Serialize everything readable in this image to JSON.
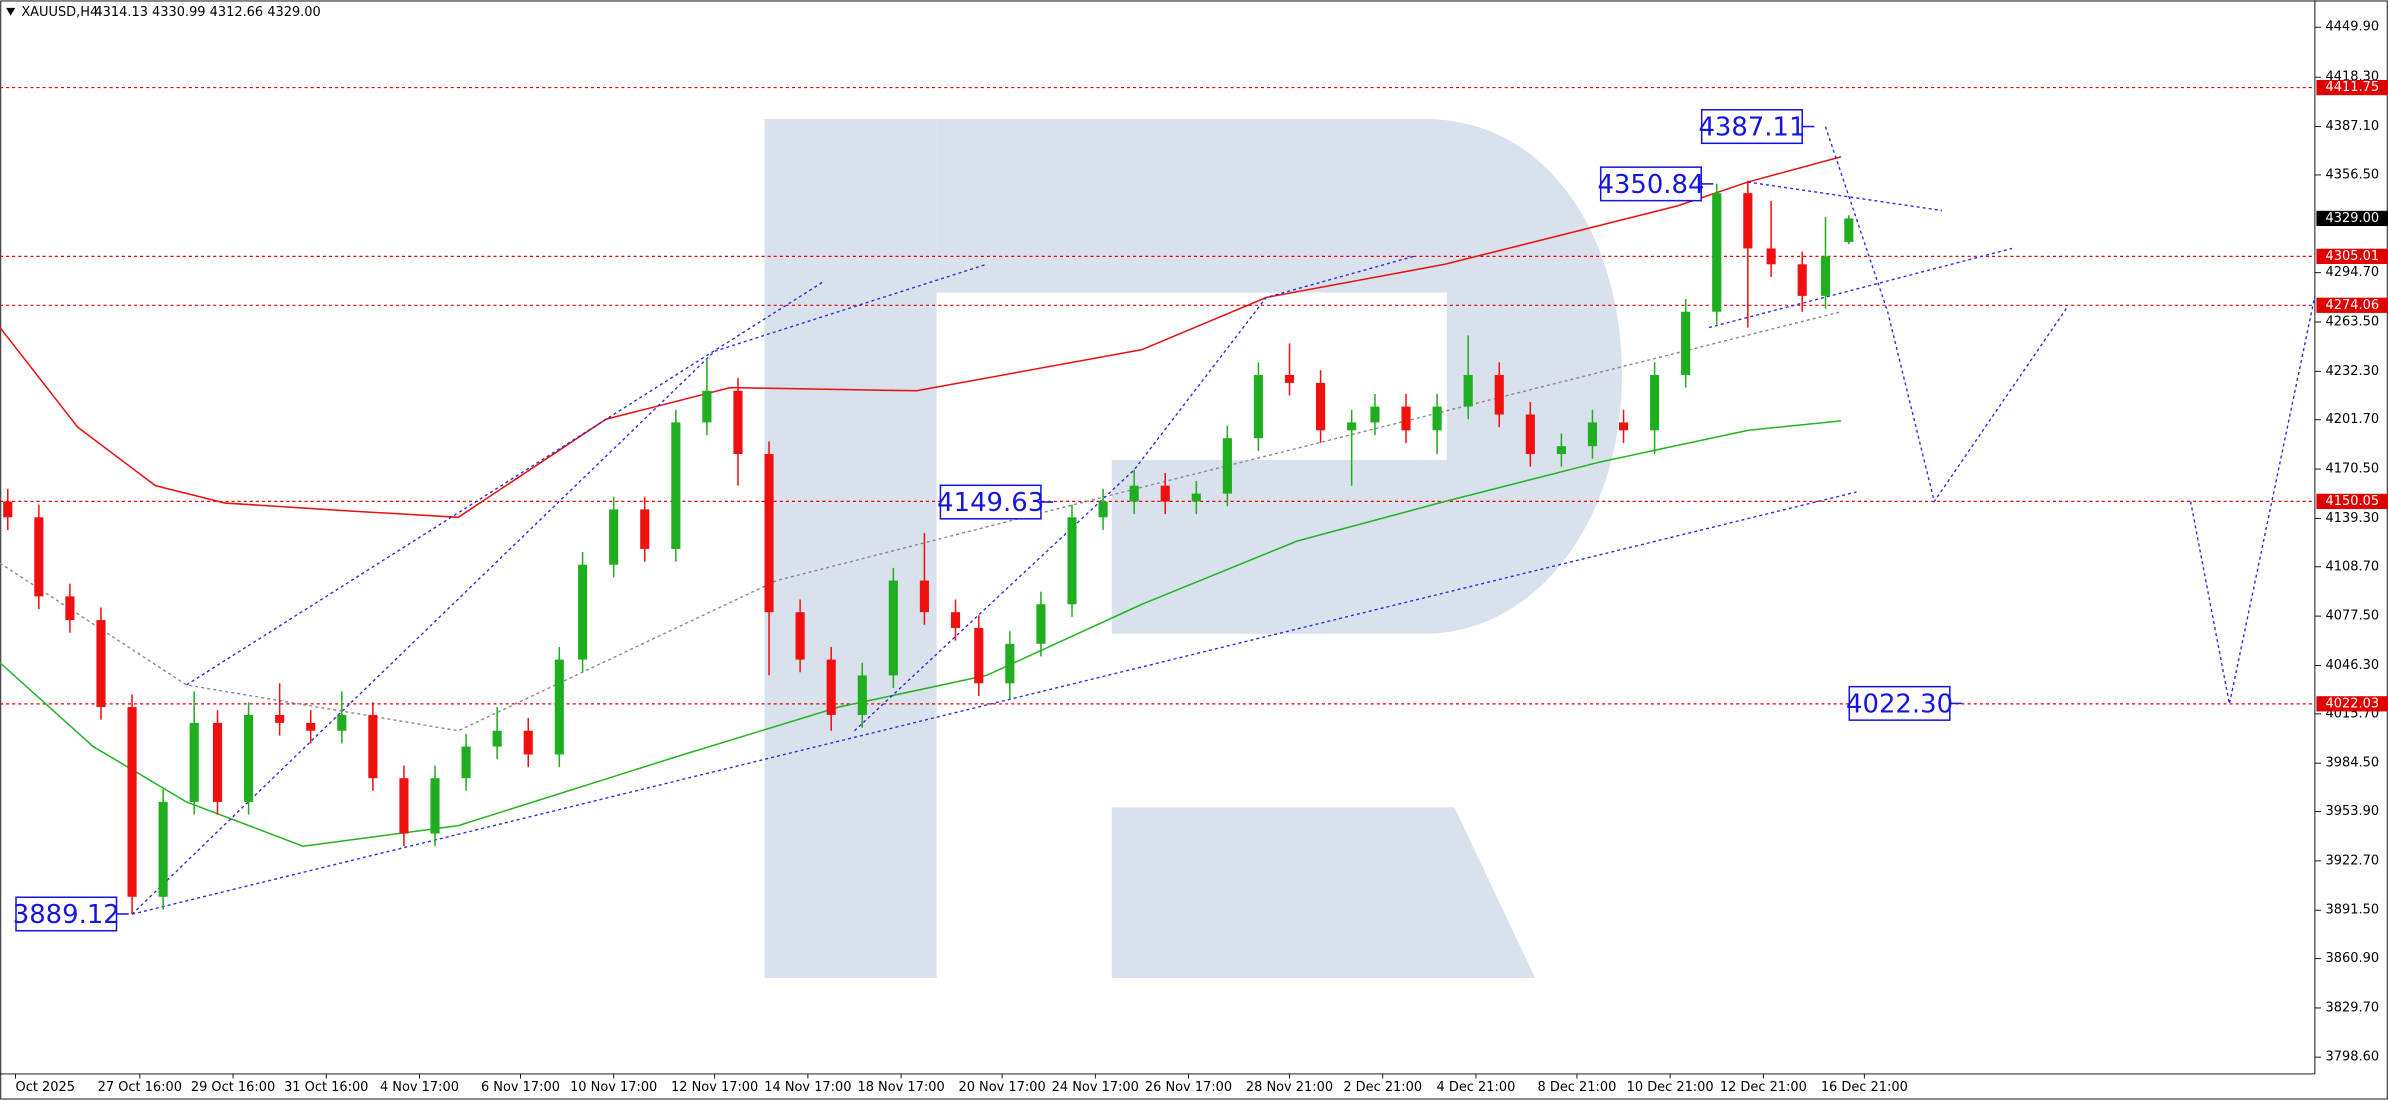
{
  "chart_data": {
    "type": "candlestick",
    "title": "XAUUSD,H4",
    "subtitle": "4314.13 4330.99 4312.66 4329.00",
    "xlim": [
      0,
      298
    ],
    "ylim": [
      3788,
      4467
    ],
    "grid": false,
    "bull_color": "#1fae1f",
    "bear_color": "#f01010",
    "yticks": [
      {
        "value": 4449.9,
        "label": "4449.90"
      },
      {
        "value": 4418.3,
        "label": "4418.30"
      },
      {
        "value": 4387.1,
        "label": "4387.10"
      },
      {
        "value": 4356.5,
        "label": "4356.50"
      },
      {
        "value": 4294.7,
        "label": "4294.70"
      },
      {
        "value": 4263.5,
        "label": "4263.50"
      },
      {
        "value": 4232.3,
        "label": "4232.30"
      },
      {
        "value": 4201.7,
        "label": "4201.70"
      },
      {
        "value": 4170.5,
        "label": "4170.50"
      },
      {
        "value": 4139.3,
        "label": "4139.30"
      },
      {
        "value": 4108.7,
        "label": "4108.70"
      },
      {
        "value": 4077.5,
        "label": "4077.50"
      },
      {
        "value": 4046.3,
        "label": "4046.30"
      },
      {
        "value": 4015.7,
        "label": "4015.70"
      },
      {
        "value": 3984.5,
        "label": "3984.50"
      },
      {
        "value": 3953.9,
        "label": "3953.90"
      },
      {
        "value": 3922.7,
        "label": "3922.70"
      },
      {
        "value": 3891.5,
        "label": "3891.50"
      },
      {
        "value": 3860.9,
        "label": "3860.90"
      },
      {
        "value": 3829.7,
        "label": "3829.70"
      },
      {
        "value": 3798.6,
        "label": "3798.60"
      }
    ],
    "xticks": [
      {
        "value": 2,
        "label": "Oct 2025"
      },
      {
        "value": 18,
        "label": "27 Oct 16:00"
      },
      {
        "value": 30,
        "label": "29 Oct 16:00"
      },
      {
        "value": 42,
        "label": "31 Oct 16:00"
      },
      {
        "value": 54,
        "label": "4 Nov 17:00"
      },
      {
        "value": 67,
        "label": "6 Nov 17:00"
      },
      {
        "value": 79,
        "label": "10 Nov 17:00"
      },
      {
        "value": 92,
        "label": "12 Nov 17:00"
      },
      {
        "value": 104,
        "label": "14 Nov 17:00"
      },
      {
        "value": 116,
        "label": "18 Nov 17:00"
      },
      {
        "value": 129,
        "label": "20 Nov 17:00"
      },
      {
        "value": 141,
        "label": "24 Nov 17:00"
      },
      {
        "value": 153,
        "label": "26 Nov 17:00"
      },
      {
        "value": 166,
        "label": "28 Nov 21:00"
      },
      {
        "value": 178,
        "label": "2 Dec 21:00"
      },
      {
        "value": 190,
        "label": "4 Dec 21:00"
      },
      {
        "value": 203,
        "label": "8 Dec 21:00"
      },
      {
        "value": 215,
        "label": "10 Dec 21:00"
      },
      {
        "value": 227,
        "label": "12 Dec 21:00"
      },
      {
        "value": 240,
        "label": "16 Dec 21:00"
      }
    ],
    "candles": {
      "x": [
        1,
        5,
        9,
        13,
        17,
        21,
        25,
        28,
        32,
        36,
        40,
        44,
        48,
        52,
        56,
        60,
        64,
        68,
        72,
        75,
        79,
        83,
        87,
        91,
        95,
        99,
        103,
        107,
        111,
        115,
        119,
        123,
        126,
        130,
        134,
        138,
        142,
        146,
        150,
        154,
        158,
        162,
        166,
        170,
        174,
        177,
        181,
        185,
        189,
        193,
        197,
        201,
        205,
        209,
        213,
        217,
        221,
        225,
        228,
        232,
        235,
        238
      ],
      "open": [
        4150,
        4140,
        4090,
        4075,
        4020,
        3900,
        3960,
        4010,
        3960,
        4015,
        4010,
        4005,
        4015,
        3975,
        3940,
        3975,
        3995,
        4005,
        3990,
        4050,
        4110,
        4145,
        4120,
        4200,
        4220,
        4180,
        4080,
        4050,
        4015,
        4040,
        4100,
        4080,
        4070,
        4035,
        4060,
        4085,
        4140,
        4150,
        4160,
        4150,
        4155,
        4190,
        4230,
        4225,
        4195,
        4200,
        4210,
        4195,
        4210,
        4230,
        4205,
        4180,
        4185,
        4200,
        4195,
        4230,
        4270,
        4345,
        4310,
        4300,
        4280,
        4314.13
      ],
      "high": [
        4158,
        4148,
        4098,
        4083,
        4028,
        3968,
        4030,
        4018,
        4023,
        4035,
        4018,
        4030,
        4023,
        3983,
        3983,
        4003,
        4020,
        4013,
        4058,
        4118,
        4153,
        4153,
        4208,
        4240,
        4228,
        4188,
        4088,
        4058,
        4048,
        4108,
        4130,
        4088,
        4078,
        4068,
        4093,
        4148,
        4158,
        4170,
        4168,
        4163,
        4198,
        4238,
        4250,
        4233,
        4208,
        4218,
        4218,
        4218,
        4255,
        4238,
        4213,
        4193,
        4208,
        4208,
        4238,
        4278,
        4351,
        4353,
        4340,
        4308,
        4330,
        4330.99
      ],
      "low": [
        4132,
        4082,
        4067,
        4012,
        3889,
        3892,
        3952,
        3952,
        3952,
        4002,
        3997,
        3997,
        3967,
        3932,
        3932,
        3967,
        3987,
        3982,
        3982,
        4042,
        4102,
        4112,
        4112,
        4192,
        4160,
        4040,
        4042,
        4005,
        4007,
        4032,
        4072,
        4062,
        4027,
        4025,
        4052,
        4077,
        4132,
        4142,
        4142,
        4142,
        4147,
        4182,
        4217,
        4187,
        4160,
        4192,
        4187,
        4180,
        4202,
        4197,
        4172,
        4172,
        4177,
        4187,
        4180,
        4222,
        4262,
        4260,
        4292,
        4270,
        4272,
        4312.66
      ],
      "close": [
        4140,
        4090,
        4075,
        4020,
        3900,
        3960,
        4010,
        3960,
        4015,
        4010,
        4005,
        4015,
        3975,
        3940,
        3975,
        3995,
        4005,
        3990,
        4050,
        4110,
        4145,
        4120,
        4200,
        4220,
        4180,
        4080,
        4050,
        4015,
        4040,
        4100,
        4080,
        4070,
        4035,
        4060,
        4085,
        4140,
        4150,
        4160,
        4150,
        4155,
        4190,
        4230,
        4225,
        4195,
        4200,
        4210,
        4195,
        4210,
        4230,
        4205,
        4180,
        4185,
        4200,
        4195,
        4230,
        4270,
        4345,
        4310,
        4300,
        4280,
        4305,
        4329.0
      ]
    },
    "lines": [
      {
        "color": "#e81010",
        "style": "solid",
        "x": [
          0,
          10,
          20,
          29,
          45,
          59,
          78,
          94,
          118,
          147,
          163,
          186,
          216,
          225,
          237
        ],
        "values": [
          4260,
          4197,
          4160,
          4149,
          4144,
          4140,
          4202,
          4222,
          4220,
          4246,
          4279,
          4300,
          4337,
          4352,
          4368
        ]
      },
      {
        "color": "#22b422",
        "style": "solid",
        "x": [
          0,
          12,
          24,
          39,
          59,
          88,
          108,
          127,
          147,
          167,
          186,
          206,
          225,
          237
        ],
        "values": [
          4048,
          3995,
          3960,
          3932,
          3945,
          3990,
          4020,
          4040,
          4085,
          4125,
          4150,
          4175,
          4195,
          4201
        ]
      },
      {
        "color": "#888888",
        "style": "dotted",
        "x": [
          0,
          24,
          59,
          100,
          147,
          237
        ],
        "values": [
          4111,
          4034,
          4005,
          4100,
          4159,
          4270
        ]
      },
      {
        "color": "#2b2bdd",
        "style": "dotted",
        "x": [
          17,
          239
        ],
        "values": [
          3889,
          4156
        ]
      },
      {
        "color": "#2b2bdd",
        "style": "dotted",
        "x": [
          24,
          106
        ],
        "values": [
          4034,
          4289
        ]
      },
      {
        "color": "#2b2bdd",
        "style": "dotted",
        "x": [
          17,
          92,
          127
        ],
        "values": [
          3889,
          4245,
          4300
        ]
      },
      {
        "color": "#2b2bdd",
        "style": "dotted",
        "x": [
          110,
          146,
          163,
          182
        ],
        "values": [
          4005,
          4170,
          4279,
          4305
        ]
      },
      {
        "color": "#2b2bdd",
        "style": "dotted",
        "x": [
          220,
          259
        ],
        "values": [
          4260,
          4310
        ]
      },
      {
        "color": "#2b2bdd",
        "style": "dotted",
        "x": [
          225,
          250
        ],
        "values": [
          4352,
          4334
        ]
      },
      {
        "color": "#2b2bdd",
        "style": "dotted",
        "x": [
          235,
          243,
          249,
          266
        ],
        "values": [
          4387,
          4270,
          4150,
          4272
        ]
      },
      {
        "color": "#2b2bdd",
        "style": "dotted",
        "x": [
          282,
          287,
          298
        ],
        "values": [
          4150,
          4022,
          4280
        ]
      }
    ],
    "level_color": "#e00000",
    "levels": [
      {
        "value": 4411.75,
        "label": "4411.75"
      },
      {
        "value": 4305.01,
        "label": "4305.01"
      },
      {
        "value": 4274.06,
        "label": "4274.06"
      },
      {
        "value": 4150.05,
        "label": "4150.05"
      },
      {
        "value": 4022.03,
        "label": "4022.03"
      }
    ],
    "current_price": {
      "value": 4329.0,
      "label": "4329.00"
    },
    "annotations": [
      {
        "x": 232,
        "value": 4387.11,
        "label": "4387.11"
      },
      {
        "x": 219,
        "value": 4350.84,
        "label": "4350.84"
      },
      {
        "x": 134,
        "value": 4149.63,
        "label": "4149.63"
      },
      {
        "x": 15,
        "value": 3889.12,
        "label": "3889.12"
      },
      {
        "x": 251,
        "value": 4022.3,
        "label": "4022.30"
      }
    ]
  }
}
